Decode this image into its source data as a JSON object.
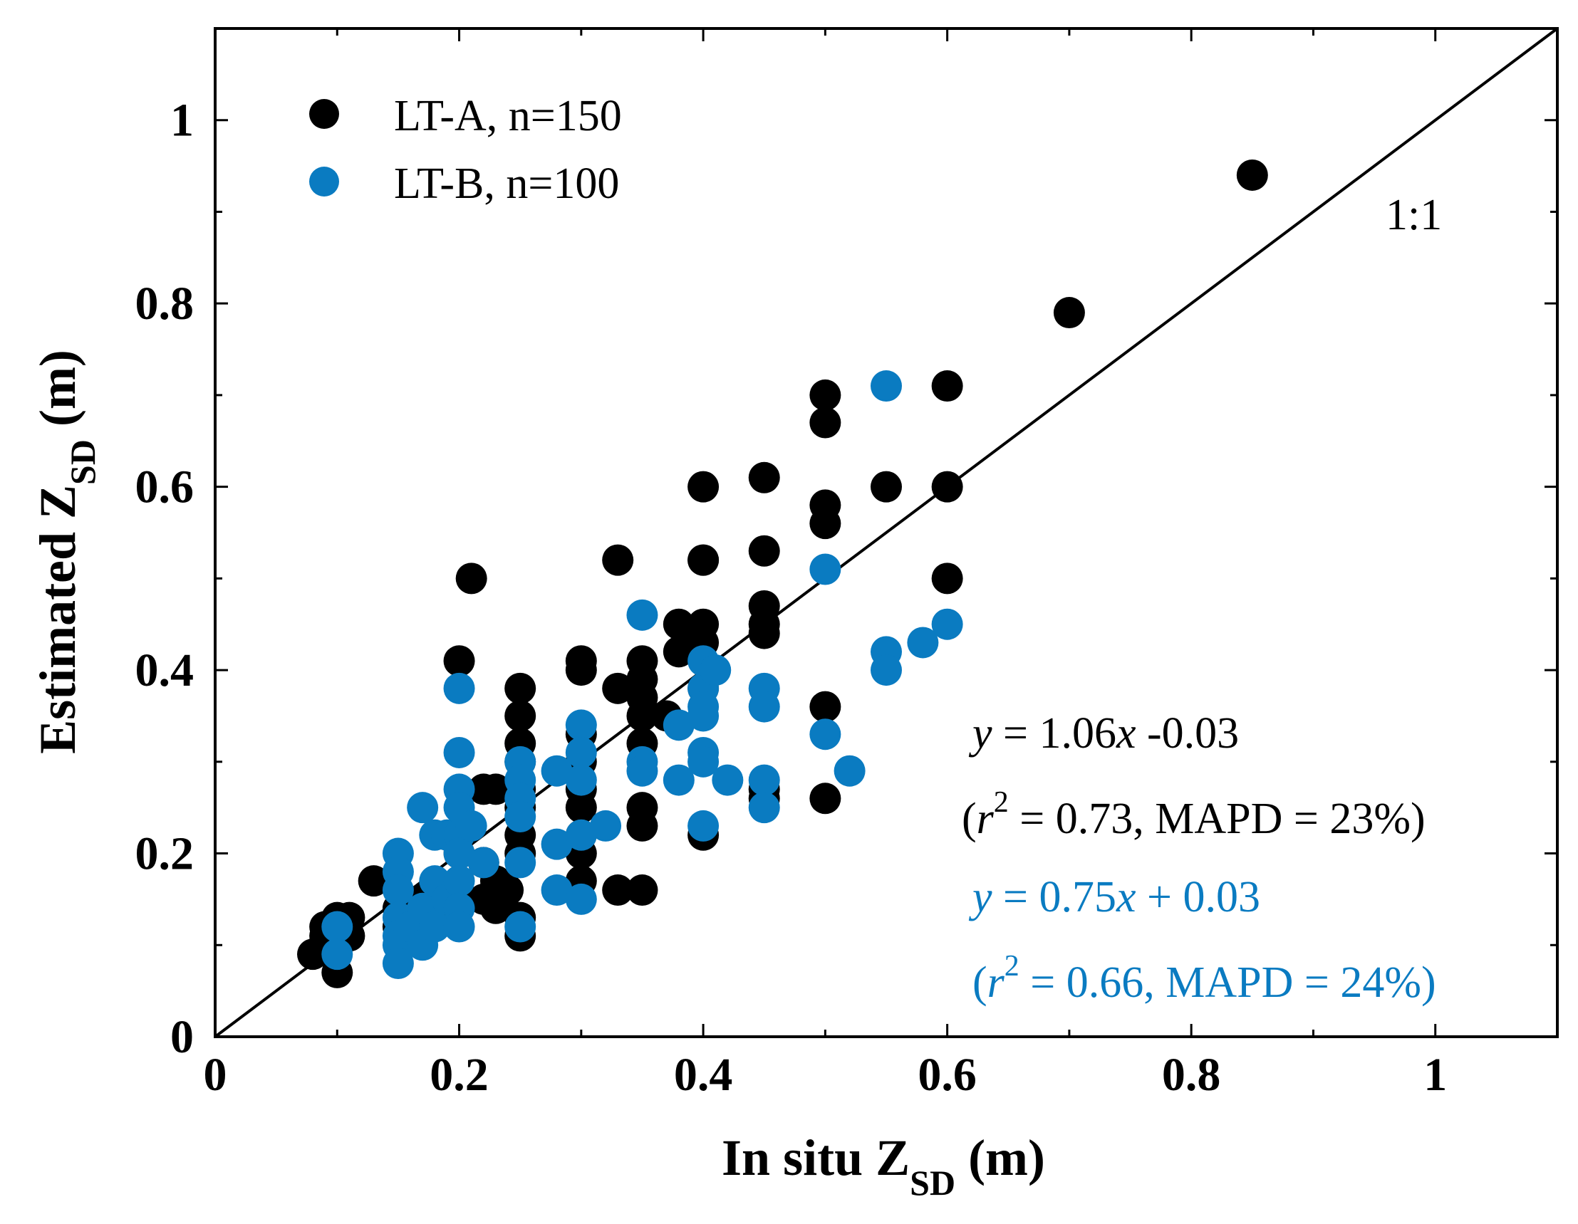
{
  "chart_data": {
    "type": "scatter",
    "xlabel": {
      "main": "In situ Z",
      "sub": "SD",
      "unit": " (m)"
    },
    "ylabel": {
      "main": "Estimated Z",
      "sub": "SD",
      "unit": " (m)"
    },
    "xlim": [
      0,
      1.1
    ],
    "ylim": [
      0,
      1.1
    ],
    "xticks": [
      0,
      0.2,
      0.4,
      0.6,
      0.8,
      1
    ],
    "xtick_labels": [
      "0",
      "0.2",
      "0.4",
      "0.6",
      "0.8",
      "1"
    ],
    "yticks": [
      0,
      0.2,
      0.4,
      0.6,
      0.8,
      1
    ],
    "ytick_labels": [
      "0",
      "0.2",
      "0.4",
      "0.6",
      "0.8",
      "1"
    ],
    "grid": false,
    "legend_position": "top-left",
    "reference_line": {
      "label": "1:1",
      "slope": 1,
      "intercept": 0
    },
    "series": [
      {
        "name": "LT-A, n=150",
        "color": "#000000",
        "points": [
          [
            0.08,
            0.09
          ],
          [
            0.09,
            0.12
          ],
          [
            0.1,
            0.07
          ],
          [
            0.1,
            0.13
          ],
          [
            0.11,
            0.11
          ],
          [
            0.11,
            0.13
          ],
          [
            0.1,
            0.1
          ],
          [
            0.09,
            0.11
          ],
          [
            0.13,
            0.17
          ],
          [
            0.15,
            0.12
          ],
          [
            0.15,
            0.14
          ],
          [
            0.16,
            0.11
          ],
          [
            0.17,
            0.15
          ],
          [
            0.18,
            0.14
          ],
          [
            0.18,
            0.16
          ],
          [
            0.19,
            0.13
          ],
          [
            0.2,
            0.41
          ],
          [
            0.2,
            0.2
          ],
          [
            0.2,
            0.15
          ],
          [
            0.21,
            0.5
          ],
          [
            0.22,
            0.19
          ],
          [
            0.22,
            0.27
          ],
          [
            0.22,
            0.15
          ],
          [
            0.23,
            0.27
          ],
          [
            0.23,
            0.14
          ],
          [
            0.23,
            0.17
          ],
          [
            0.24,
            0.16
          ],
          [
            0.25,
            0.38
          ],
          [
            0.25,
            0.35
          ],
          [
            0.25,
            0.32
          ],
          [
            0.25,
            0.3
          ],
          [
            0.25,
            0.27
          ],
          [
            0.25,
            0.25
          ],
          [
            0.25,
            0.22
          ],
          [
            0.25,
            0.2
          ],
          [
            0.25,
            0.13
          ],
          [
            0.25,
            0.11
          ],
          [
            0.3,
            0.41
          ],
          [
            0.3,
            0.4
          ],
          [
            0.3,
            0.33
          ],
          [
            0.3,
            0.3
          ],
          [
            0.3,
            0.27
          ],
          [
            0.3,
            0.25
          ],
          [
            0.3,
            0.22
          ],
          [
            0.3,
            0.2
          ],
          [
            0.3,
            0.17
          ],
          [
            0.33,
            0.52
          ],
          [
            0.33,
            0.38
          ],
          [
            0.33,
            0.16
          ],
          [
            0.35,
            0.41
          ],
          [
            0.35,
            0.39
          ],
          [
            0.35,
            0.37
          ],
          [
            0.35,
            0.35
          ],
          [
            0.35,
            0.32
          ],
          [
            0.35,
            0.25
          ],
          [
            0.35,
            0.23
          ],
          [
            0.35,
            0.16
          ],
          [
            0.37,
            0.35
          ],
          [
            0.38,
            0.45
          ],
          [
            0.38,
            0.42
          ],
          [
            0.39,
            0.44
          ],
          [
            0.4,
            0.6
          ],
          [
            0.4,
            0.52
          ],
          [
            0.4,
            0.52
          ],
          [
            0.4,
            0.45
          ],
          [
            0.4,
            0.43
          ],
          [
            0.4,
            0.38
          ],
          [
            0.4,
            0.22
          ],
          [
            0.45,
            0.61
          ],
          [
            0.45,
            0.53
          ],
          [
            0.45,
            0.47
          ],
          [
            0.45,
            0.45
          ],
          [
            0.45,
            0.44
          ],
          [
            0.45,
            0.27
          ],
          [
            0.45,
            0.26
          ],
          [
            0.5,
            0.7
          ],
          [
            0.5,
            0.67
          ],
          [
            0.5,
            0.58
          ],
          [
            0.5,
            0.56
          ],
          [
            0.5,
            0.36
          ],
          [
            0.5,
            0.26
          ],
          [
            0.55,
            0.6
          ],
          [
            0.6,
            0.71
          ],
          [
            0.6,
            0.6
          ],
          [
            0.6,
            0.5
          ],
          [
            0.7,
            0.79
          ],
          [
            0.85,
            0.94
          ]
        ]
      },
      {
        "name": "LT-B, n=100",
        "color": "#0a7bc1",
        "points": [
          [
            0.1,
            0.12
          ],
          [
            0.1,
            0.09
          ],
          [
            0.15,
            0.2
          ],
          [
            0.15,
            0.18
          ],
          [
            0.15,
            0.16
          ],
          [
            0.15,
            0.13
          ],
          [
            0.15,
            0.11
          ],
          [
            0.15,
            0.1
          ],
          [
            0.15,
            0.08
          ],
          [
            0.16,
            0.12
          ],
          [
            0.17,
            0.25
          ],
          [
            0.17,
            0.14
          ],
          [
            0.17,
            0.1
          ],
          [
            0.18,
            0.22
          ],
          [
            0.18,
            0.17
          ],
          [
            0.18,
            0.12
          ],
          [
            0.19,
            0.15
          ],
          [
            0.19,
            0.22
          ],
          [
            0.2,
            0.38
          ],
          [
            0.2,
            0.31
          ],
          [
            0.2,
            0.27
          ],
          [
            0.2,
            0.25
          ],
          [
            0.2,
            0.22
          ],
          [
            0.2,
            0.2
          ],
          [
            0.2,
            0.17
          ],
          [
            0.2,
            0.14
          ],
          [
            0.2,
            0.12
          ],
          [
            0.21,
            0.23
          ],
          [
            0.22,
            0.19
          ],
          [
            0.25,
            0.3
          ],
          [
            0.25,
            0.28
          ],
          [
            0.25,
            0.26
          ],
          [
            0.25,
            0.24
          ],
          [
            0.25,
            0.19
          ],
          [
            0.25,
            0.12
          ],
          [
            0.28,
            0.29
          ],
          [
            0.28,
            0.21
          ],
          [
            0.28,
            0.16
          ],
          [
            0.3,
            0.34
          ],
          [
            0.3,
            0.31
          ],
          [
            0.3,
            0.28
          ],
          [
            0.3,
            0.22
          ],
          [
            0.3,
            0.15
          ],
          [
            0.32,
            0.23
          ],
          [
            0.35,
            0.46
          ],
          [
            0.35,
            0.3
          ],
          [
            0.35,
            0.29
          ],
          [
            0.38,
            0.34
          ],
          [
            0.38,
            0.28
          ],
          [
            0.4,
            0.41
          ],
          [
            0.4,
            0.38
          ],
          [
            0.4,
            0.36
          ],
          [
            0.4,
            0.35
          ],
          [
            0.4,
            0.31
          ],
          [
            0.4,
            0.3
          ],
          [
            0.4,
            0.23
          ],
          [
            0.41,
            0.4
          ],
          [
            0.42,
            0.28
          ],
          [
            0.45,
            0.38
          ],
          [
            0.45,
            0.36
          ],
          [
            0.45,
            0.28
          ],
          [
            0.45,
            0.25
          ],
          [
            0.5,
            0.51
          ],
          [
            0.5,
            0.33
          ],
          [
            0.52,
            0.29
          ],
          [
            0.55,
            0.71
          ],
          [
            0.55,
            0.42
          ],
          [
            0.55,
            0.4
          ],
          [
            0.58,
            0.43
          ],
          [
            0.6,
            0.45
          ]
        ]
      }
    ],
    "regressions": [
      {
        "equation": "y = 1.06x -0.03",
        "stats": "(r2 = 0.73, MAPD = 23%)",
        "color": "#000000",
        "y_sym": "y",
        "eq_mid": " = 1.06",
        "x_sym": "x",
        "eq_end": " -0.03",
        "open": "(",
        "r_sym": "r",
        "r_exp": "2",
        "stats_rest": " = 0.73, MAPD = 23%)"
      },
      {
        "equation": "y = 0.75x + 0.03",
        "stats": "(r2 = 0.66, MAPD = 24%)",
        "color": "#0a7bc1",
        "y_sym": "y",
        "eq_mid": " = 0.75",
        "x_sym": "x",
        "eq_end": " + 0.03",
        "open": "(",
        "r_sym": "r",
        "r_exp": "2",
        "stats_rest": " = 0.66, MAPD = 24%)"
      }
    ]
  }
}
